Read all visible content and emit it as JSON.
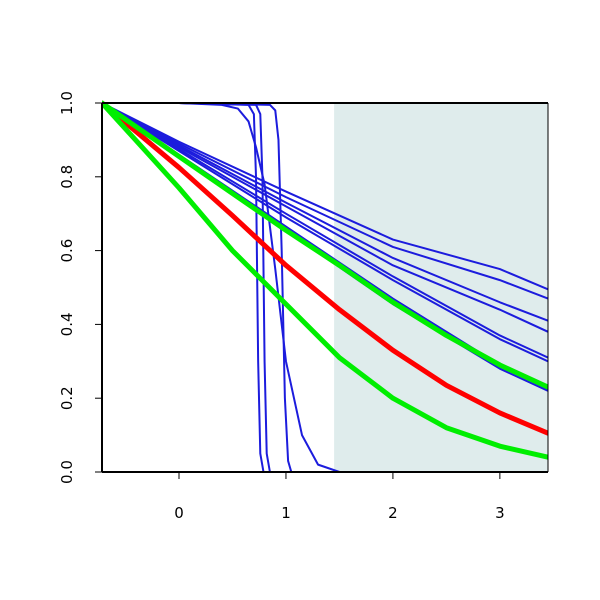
{
  "chart_data": {
    "type": "line",
    "title": "",
    "xlabel": "",
    "ylabel": "",
    "xlim": [
      -0.72,
      3.45
    ],
    "ylim": [
      0.0,
      1.0
    ],
    "x_ticks": [
      0,
      1,
      2,
      3
    ],
    "y_ticks": [
      0.0,
      0.2,
      0.4,
      0.6,
      0.8,
      1.0
    ],
    "x_tick_labels": [
      "0",
      "1",
      "2",
      "3"
    ],
    "y_tick_labels": [
      "0.0",
      "0.2",
      "0.4",
      "0.6",
      "0.8",
      "1.0"
    ],
    "grid": false,
    "legend": "none",
    "shaded_region": {
      "x_start": 1.45,
      "x_end": 3.45,
      "color": "#dfecec"
    },
    "series": [
      {
        "color": "#ff0000",
        "width": 5,
        "x": [
          -0.72,
          0.0,
          0.5,
          1.0,
          1.5,
          2.0,
          2.5,
          3.0,
          3.45
        ],
        "y": [
          1.0,
          0.825,
          0.695,
          0.56,
          0.44,
          0.33,
          0.235,
          0.16,
          0.105
        ]
      },
      {
        "color": "#00ee00",
        "width": 5,
        "x": [
          -0.72,
          0.0,
          0.5,
          1.0,
          1.5,
          2.0,
          2.5,
          3.0,
          3.45
        ],
        "y": [
          1.0,
          0.77,
          0.6,
          0.455,
          0.31,
          0.2,
          0.12,
          0.07,
          0.04
        ]
      },
      {
        "color": "#00ee00",
        "width": 5,
        "x": [
          -0.72,
          0.0,
          0.5,
          1.0,
          1.5,
          2.0,
          2.5,
          3.0,
          3.45
        ],
        "y": [
          1.0,
          0.855,
          0.755,
          0.655,
          0.56,
          0.46,
          0.37,
          0.29,
          0.23
        ]
      },
      {
        "color": "#1c1cdd",
        "width": 2,
        "x": [
          -0.72,
          0.0,
          1.0,
          2.0,
          3.0,
          3.45
        ],
        "y": [
          1.0,
          0.855,
          0.655,
          0.455,
          0.28,
          0.22
        ]
      },
      {
        "color": "#1c1cdd",
        "width": 2,
        "x": [
          -0.72,
          0.0,
          1.0,
          2.0,
          3.0,
          3.45
        ],
        "y": [
          1.0,
          0.86,
          0.665,
          0.47,
          0.29,
          0.225
        ]
      },
      {
        "color": "#1c1cdd",
        "width": 2,
        "x": [
          -0.72,
          0.0,
          1.0,
          2.0,
          3.0,
          3.45
        ],
        "y": [
          1.0,
          0.87,
          0.69,
          0.52,
          0.36,
          0.3
        ]
      },
      {
        "color": "#1c1cdd",
        "width": 2,
        "x": [
          -0.72,
          0.0,
          1.0,
          2.0,
          3.0,
          3.45
        ],
        "y": [
          1.0,
          0.875,
          0.7,
          0.53,
          0.37,
          0.31
        ]
      },
      {
        "color": "#1c1cdd",
        "width": 2,
        "x": [
          -0.72,
          0.0,
          1.0,
          2.0,
          3.0,
          3.45
        ],
        "y": [
          1.0,
          0.88,
          0.72,
          0.56,
          0.44,
          0.38
        ]
      },
      {
        "color": "#1c1cdd",
        "width": 2,
        "x": [
          -0.72,
          0.0,
          1.0,
          2.0,
          3.0,
          3.45
        ],
        "y": [
          1.0,
          0.885,
          0.73,
          0.58,
          0.46,
          0.41
        ]
      },
      {
        "color": "#1c1cdd",
        "width": 2,
        "x": [
          -0.72,
          0.0,
          1.0,
          2.0,
          3.0,
          3.45
        ],
        "y": [
          1.0,
          0.89,
          0.745,
          0.61,
          0.52,
          0.47
        ]
      },
      {
        "color": "#1c1cdd",
        "width": 2,
        "x": [
          -0.72,
          0.0,
          1.0,
          2.0,
          3.0,
          3.45
        ],
        "y": [
          1.0,
          0.895,
          0.76,
          0.63,
          0.55,
          0.495
        ]
      },
      {
        "color": "#1c1cdd",
        "width": 2,
        "x": [
          -0.72,
          0.0,
          0.4,
          0.55,
          0.65,
          0.72,
          0.8,
          0.9,
          1.0,
          1.15,
          1.3,
          1.5,
          3.45
        ],
        "y": [
          1.0,
          1.0,
          0.995,
          0.985,
          0.95,
          0.88,
          0.78,
          0.55,
          0.3,
          0.1,
          0.02,
          0.0,
          0.0
        ]
      },
      {
        "color": "#1c1cdd",
        "width": 2,
        "x": [
          -0.72,
          0.0,
          0.65,
          0.7,
          0.72,
          0.74,
          0.76,
          0.79,
          3.45
        ],
        "y": [
          1.0,
          1.0,
          0.995,
          0.97,
          0.8,
          0.3,
          0.05,
          0.0,
          0.0
        ]
      },
      {
        "color": "#1c1cdd",
        "width": 2,
        "x": [
          -0.72,
          0.0,
          0.72,
          0.76,
          0.78,
          0.8,
          0.82,
          0.85,
          3.45
        ],
        "y": [
          1.0,
          1.0,
          0.995,
          0.97,
          0.8,
          0.3,
          0.05,
          0.0,
          0.0
        ]
      },
      {
        "color": "#1c1cdd",
        "width": 2,
        "x": [
          -0.72,
          0.0,
          0.85,
          0.9,
          0.93,
          0.96,
          0.99,
          1.02,
          1.05,
          3.45
        ],
        "y": [
          1.0,
          1.0,
          0.995,
          0.98,
          0.9,
          0.6,
          0.2,
          0.03,
          0.0,
          0.0
        ]
      }
    ]
  }
}
